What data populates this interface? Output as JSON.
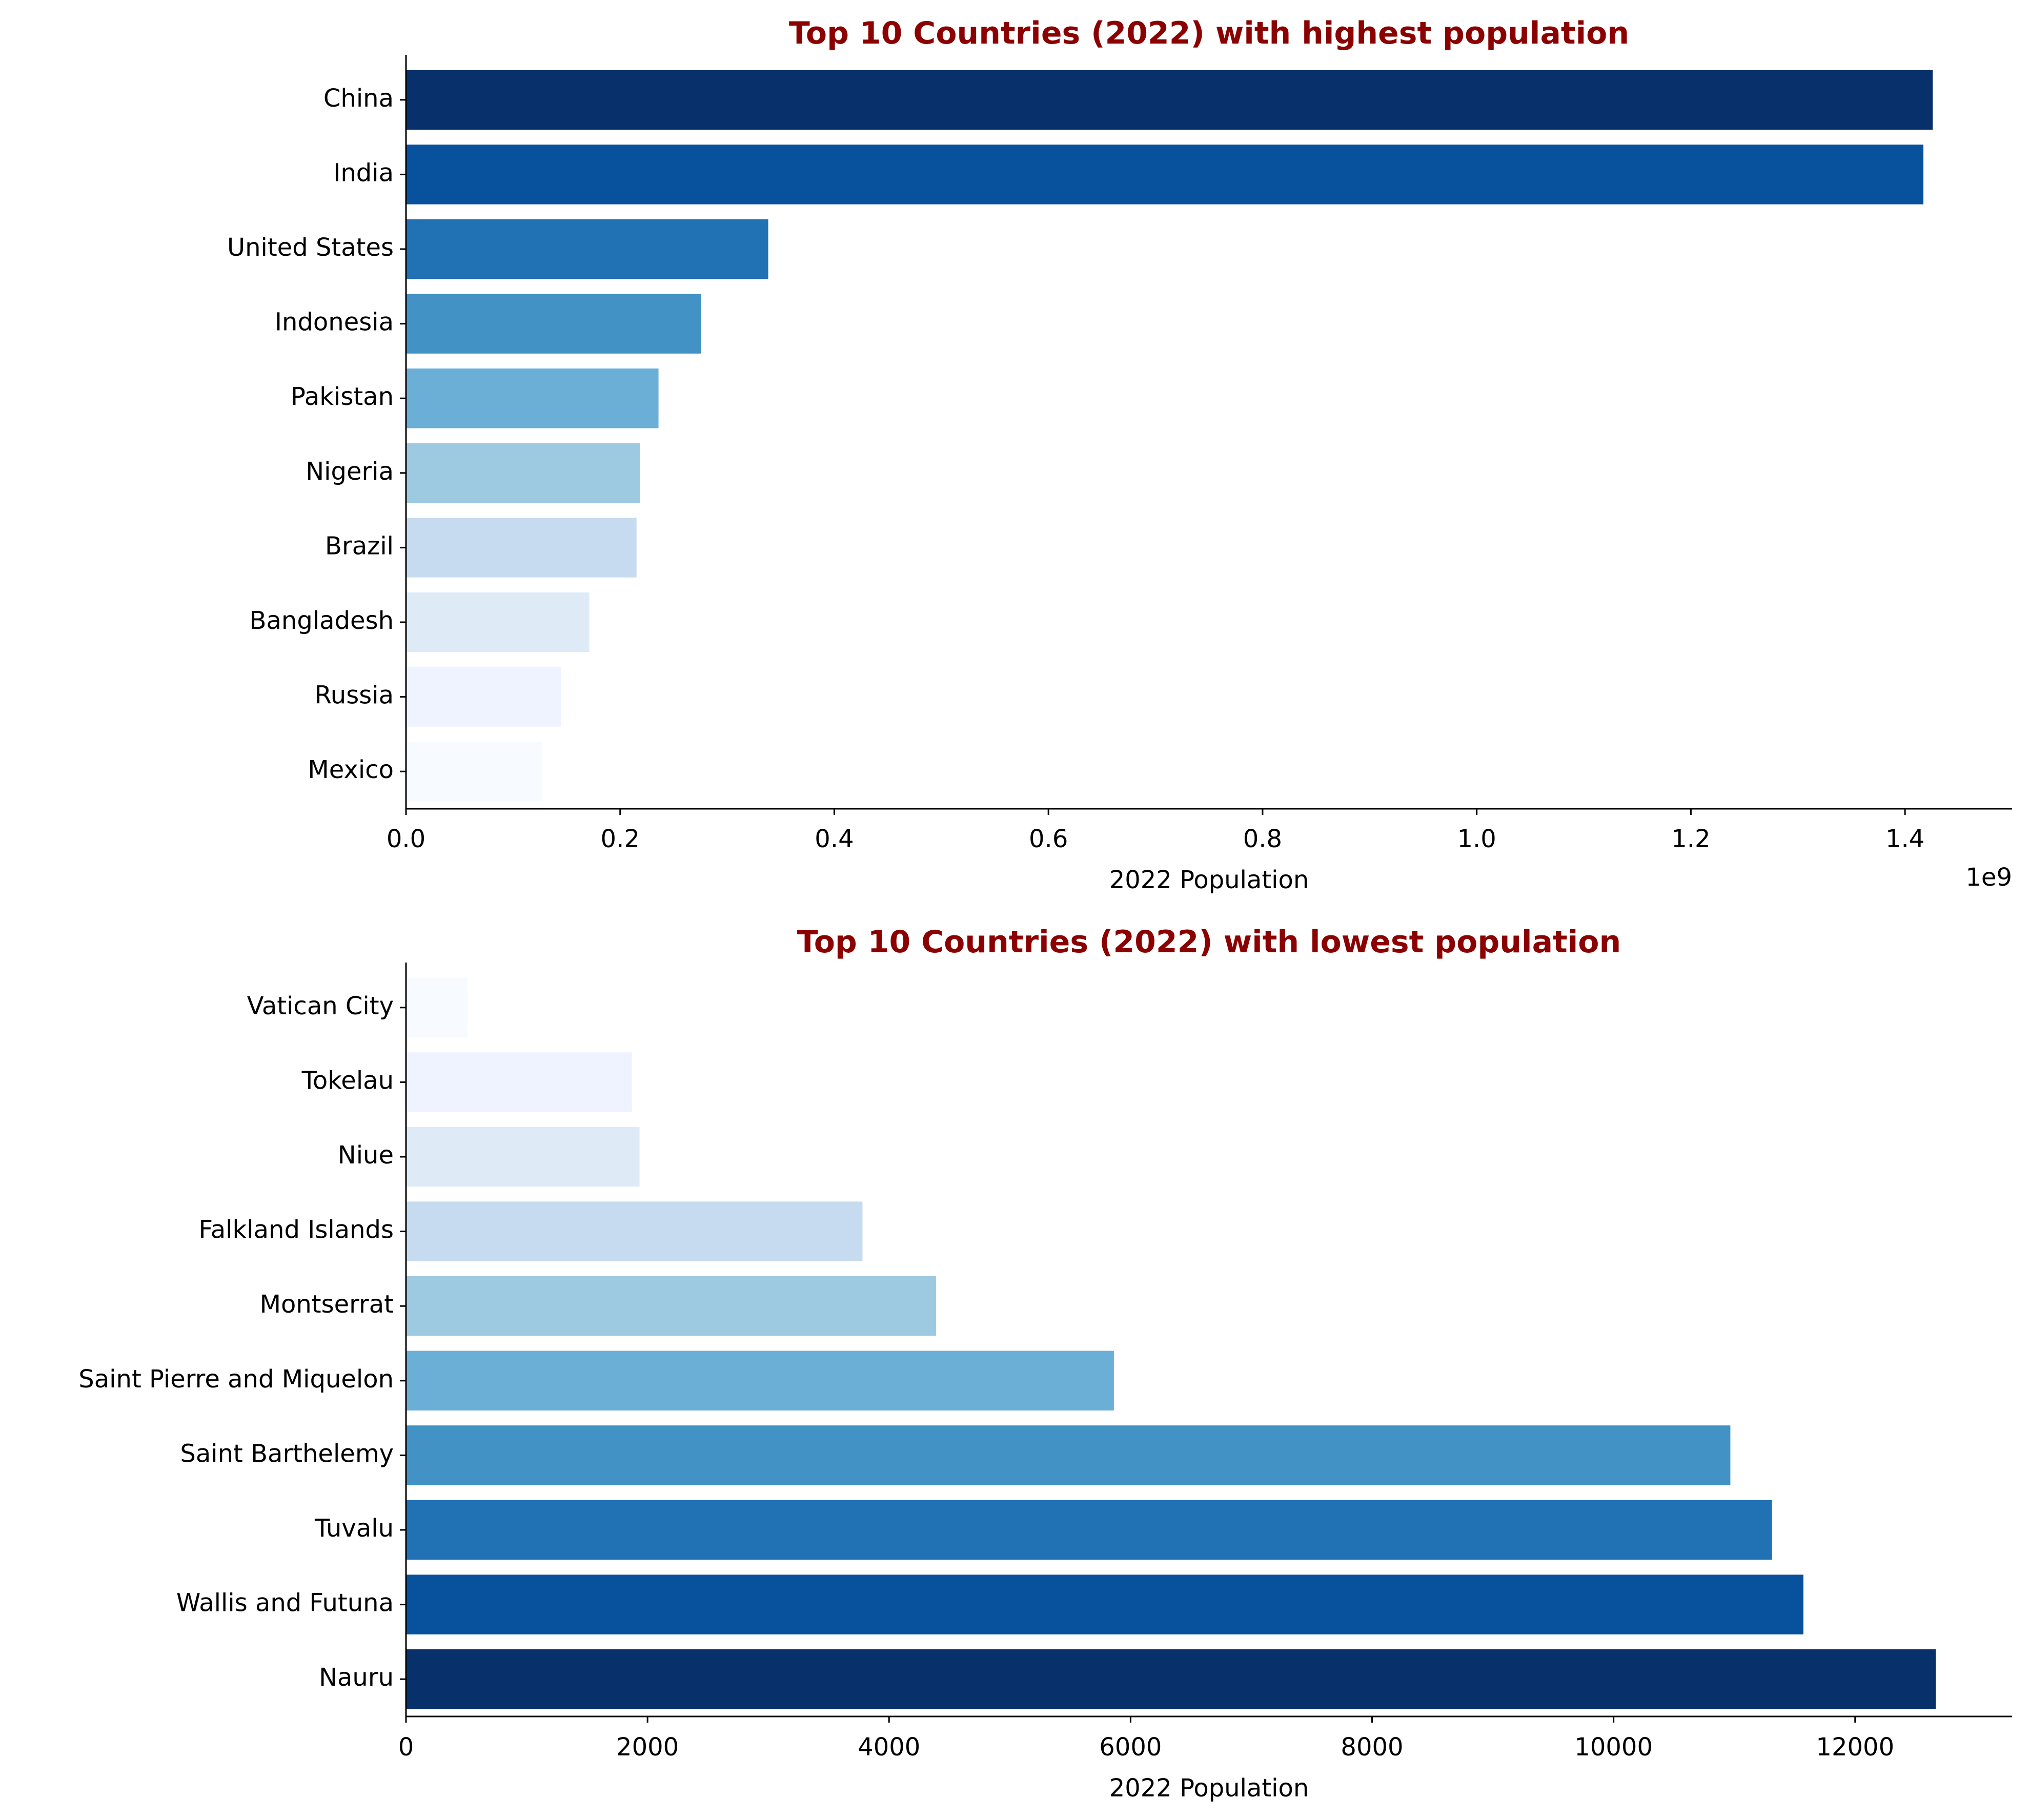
{
  "colors": {
    "title": "#8b0000",
    "axis": "#000000",
    "palette_dark_to_light": [
      "#08306b",
      "#08519c",
      "#2171b5",
      "#4292c6",
      "#6baed6",
      "#9ecae1",
      "#c6dbef",
      "#deebf7",
      "#eff3ff",
      "#f7fbff"
    ]
  },
  "chart_data": [
    {
      "type": "bar",
      "orientation": "horizontal",
      "title": "Top 10 Countries (2022) with highest population",
      "xlabel": "2022 Population",
      "ylabel": "",
      "offset_label": "1e9",
      "xlim": [
        0,
        1500000000
      ],
      "x_ticks": [
        0,
        200000000,
        400000000,
        600000000,
        800000000,
        1000000000,
        1200000000,
        1400000000
      ],
      "x_tick_labels": [
        "0.0",
        "0.2",
        "0.4",
        "0.6",
        "0.8",
        "1.0",
        "1.2",
        "1.4"
      ],
      "grid": false,
      "categories": [
        "China",
        "India",
        "United States",
        "Indonesia",
        "Pakistan",
        "Nigeria",
        "Brazil",
        "Bangladesh",
        "Russia",
        "Mexico"
      ],
      "values": [
        1425887337,
        1417173173,
        338289857,
        275501339,
        235824862,
        218541212,
        215313498,
        171186372,
        144713314,
        127504125
      ],
      "bar_colors": [
        "#08306b",
        "#08519c",
        "#2171b5",
        "#4292c6",
        "#6baed6",
        "#9ecae1",
        "#c6dbef",
        "#deebf7",
        "#eff3ff",
        "#f7fbff"
      ]
    },
    {
      "type": "bar",
      "orientation": "horizontal",
      "title": "Top 10 Countries (2022) with lowest population",
      "xlabel": "2022 Population",
      "ylabel": "",
      "offset_label": "",
      "xlim": [
        0,
        13300
      ],
      "x_ticks": [
        0,
        2000,
        4000,
        6000,
        8000,
        10000,
        12000
      ],
      "x_tick_labels": [
        "0",
        "2000",
        "4000",
        "6000",
        "8000",
        "10000",
        "12000"
      ],
      "grid": false,
      "categories": [
        "Vatican City",
        "Tokelau",
        "Niue",
        "Falkland Islands",
        "Montserrat",
        "Saint Pierre and Miquelon",
        "Saint Barthelemy",
        "Tuvalu",
        "Wallis and Futuna",
        "Nauru"
      ],
      "values": [
        510,
        1871,
        1934,
        3780,
        4390,
        5862,
        10967,
        11312,
        11572,
        12668
      ],
      "bar_colors": [
        "#f7fbff",
        "#eff3ff",
        "#deebf7",
        "#c6dbef",
        "#9ecae1",
        "#6baed6",
        "#4292c6",
        "#2171b5",
        "#08519c",
        "#08306b"
      ]
    }
  ]
}
